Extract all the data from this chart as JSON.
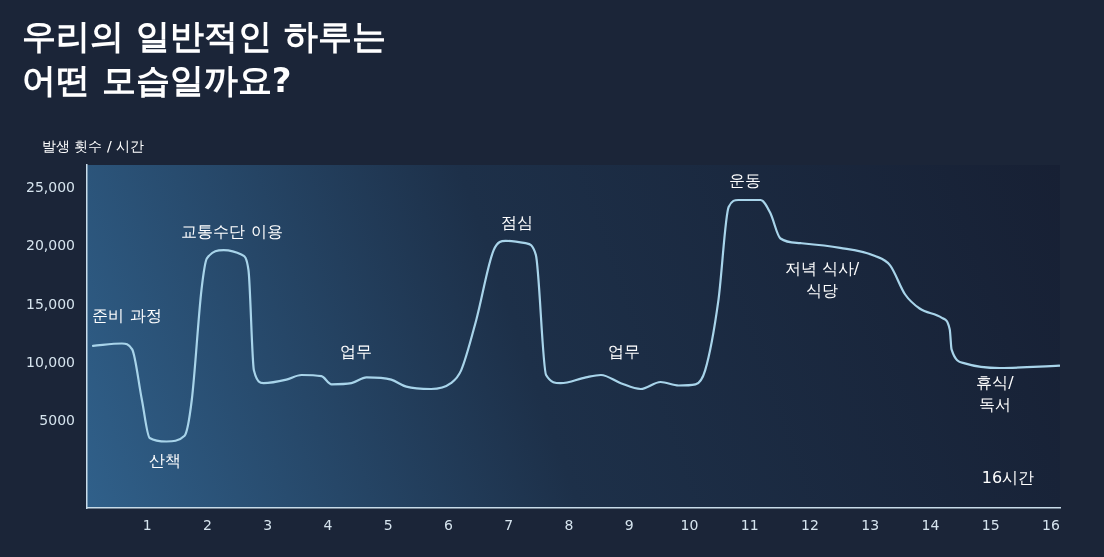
{
  "chart_data": {
    "type": "line",
    "title": "우리의 일반적인 하루는\n어떤 모습일까요?",
    "ylabel": "발생 횟수 / 시간",
    "x": [
      0.1,
      0.58,
      0.75,
      0.91,
      1.04,
      1.32,
      1.62,
      1.74,
      1.9,
      1.99,
      2.27,
      2.57,
      2.68,
      2.77,
      2.93,
      3.31,
      3.56,
      3.89,
      4.06,
      4.39,
      4.64,
      5.05,
      5.3,
      5.71,
      6.04,
      6.21,
      6.46,
      6.75,
      6.95,
      7.28,
      7.45,
      7.62,
      7.86,
      8.28,
      8.53,
      8.86,
      9.19,
      9.52,
      9.82,
      10.1,
      10.26,
      10.48,
      10.65,
      10.81,
      11.18,
      11.34,
      11.51,
      11.84,
      12.5,
      13.08,
      13.33,
      13.58,
      13.82,
      14.19,
      14.32,
      14.35,
      14.57,
      15.15,
      16.14
    ],
    "series": [
      {
        "color": "#a8d4ea",
        "values": [
          11500,
          11700,
          11200,
          6900,
          3600,
          3300,
          3800,
          6900,
          16300,
          19000,
          19700,
          19300,
          18000,
          9400,
          8300,
          8600,
          9000,
          8900,
          8200,
          8300,
          8800,
          8600,
          8000,
          7800,
          8300,
          9400,
          13700,
          19700,
          20500,
          20300,
          19300,
          9000,
          8300,
          8800,
          9000,
          8300,
          7800,
          8400,
          8100,
          8200,
          9400,
          15400,
          23400,
          24000,
          24000,
          22900,
          20700,
          20300,
          19900,
          19200,
          18400,
          15900,
          14700,
          13900,
          12900,
          11200,
          10000,
          9600,
          9800
        ]
      }
    ],
    "xlim": [
      0,
      16.15
    ],
    "xticks": [
      1,
      2,
      3,
      4,
      5,
      6,
      7,
      8,
      9,
      10,
      11,
      12,
      13,
      14,
      15,
      16
    ],
    "ylim": [
      -2400,
      27000
    ],
    "yticks": [
      5000,
      {
        "value": 10000,
        "label": "10,000"
      },
      {
        "value": 15000,
        "label": "15,000"
      },
      {
        "value": 20000,
        "label": "20,000"
      },
      {
        "value": 25000,
        "label": "25,000"
      }
    ],
    "grid": false,
    "legend": false,
    "marker": "none",
    "line_style": "solid",
    "annotations": [
      "준비 과정",
      "산책",
      "교통수단 이용",
      "업무",
      "점심",
      "업무",
      "운동",
      "저녁 식사/\n식당",
      "휴식/\n독서",
      "16시간"
    ]
  }
}
